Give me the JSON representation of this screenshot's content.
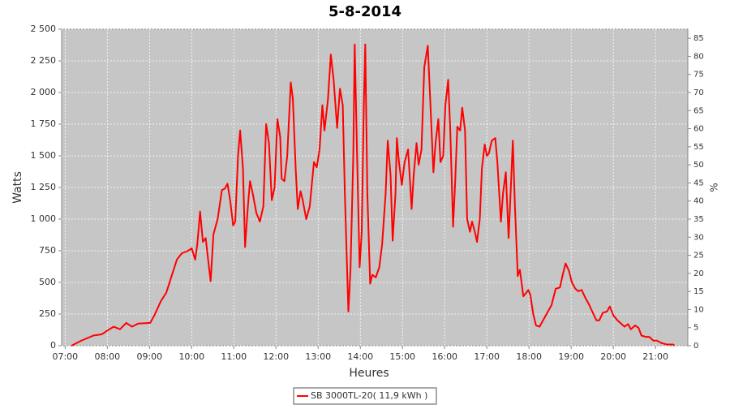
{
  "chart_data": {
    "type": "line",
    "title": "5-8-2014",
    "x_label": "Heures",
    "y_label": "Watts",
    "y2_label": "%",
    "x": [
      "07:09",
      "07:23",
      "07:40",
      "07:52",
      "08:03",
      "08:09",
      "08:18",
      "08:27",
      "08:35",
      "08:44",
      "09:01",
      "09:07",
      "09:16",
      "09:24",
      "09:32",
      "09:39",
      "09:46",
      "09:55",
      "10:00",
      "10:05",
      "10:08",
      "10:12",
      "10:16",
      "10:20",
      "10:23",
      "10:27",
      "10:31",
      "10:37",
      "10:43",
      "10:47",
      "10:51",
      "10:55",
      "10:59",
      "11:02",
      "11:06",
      "11:09",
      "11:13",
      "11:16",
      "11:20",
      "11:23",
      "11:27",
      "11:32",
      "11:37",
      "11:42",
      "11:46",
      "11:50",
      "11:54",
      "11:58",
      "12:02",
      "12:06",
      "12:08",
      "12:12",
      "12:16",
      "12:21",
      "12:24",
      "12:28",
      "12:31",
      "12:35",
      "12:38",
      "12:43",
      "12:48",
      "12:54",
      "12:58",
      "13:02",
      "13:06",
      "13:09",
      "13:14",
      "13:18",
      "13:22",
      "13:27",
      "13:31",
      "13:35",
      "13:38",
      "13:43",
      "13:46",
      "13:50",
      "13:52",
      "13:55",
      "13:59",
      "14:02",
      "14:05",
      "14:07",
      "14:10",
      "14:14",
      "14:17",
      "14:22",
      "14:27",
      "14:31",
      "14:36",
      "14:39",
      "14:43",
      "14:46",
      "14:50",
      "14:52",
      "14:55",
      "14:59",
      "15:03",
      "15:08",
      "15:13",
      "15:16",
      "15:20",
      "15:23",
      "15:27",
      "15:31",
      "15:36",
      "15:39",
      "15:44",
      "15:47",
      "15:51",
      "15:54",
      "15:58",
      "16:01",
      "16:05",
      "16:08",
      "16:12",
      "16:15",
      "16:18",
      "16:22",
      "16:25",
      "16:29",
      "16:32",
      "16:36",
      "16:39",
      "16:43",
      "16:46",
      "16:50",
      "16:53",
      "16:57",
      "17:00",
      "17:03",
      "17:07",
      "17:12",
      "17:15",
      "17:20",
      "17:23",
      "17:27",
      "17:31",
      "17:33",
      "17:37",
      "17:40",
      "17:44",
      "17:47",
      "17:52",
      "17:55",
      "17:59",
      "18:02",
      "18:06",
      "18:10",
      "18:15",
      "18:21",
      "18:27",
      "18:32",
      "18:38",
      "18:44",
      "18:48",
      "18:52",
      "18:57",
      "19:01",
      "19:06",
      "19:10",
      "19:15",
      "19:20",
      "19:25",
      "19:30",
      "19:36",
      "19:40",
      "19:45",
      "19:51",
      "19:55",
      "20:00",
      "20:06",
      "20:12",
      "20:16",
      "20:21",
      "20:25",
      "20:31",
      "20:36",
      "20:40",
      "20:46",
      "20:51",
      "20:57",
      "21:02",
      "21:09",
      "21:16",
      "21:25",
      "21:27"
    ],
    "series": [
      {
        "name": "SB 3000TL-20( 11,9 kWh )",
        "color": "#ff0000",
        "values": [
          0,
          40,
          80,
          90,
          130,
          150,
          130,
          180,
          150,
          175,
          180,
          240,
          350,
          420,
          560,
          680,
          730,
          750,
          770,
          680,
          800,
          1060,
          820,
          850,
          700,
          510,
          880,
          1000,
          1230,
          1240,
          1280,
          1140,
          950,
          980,
          1500,
          1700,
          1400,
          780,
          1100,
          1300,
          1200,
          1050,
          980,
          1100,
          1750,
          1600,
          1150,
          1250,
          1790,
          1650,
          1320,
          1300,
          1500,
          2080,
          1950,
          1400,
          1080,
          1220,
          1150,
          1000,
          1100,
          1450,
          1410,
          1550,
          1900,
          1700,
          1950,
          2300,
          2100,
          1720,
          2030,
          1900,
          1200,
          270,
          600,
          1500,
          2380,
          1600,
          620,
          900,
          1900,
          2380,
          1200,
          490,
          560,
          540,
          620,
          800,
          1200,
          1620,
          1350,
          830,
          1200,
          1640,
          1450,
          1270,
          1450,
          1550,
          1080,
          1350,
          1600,
          1430,
          1550,
          2200,
          2370,
          2000,
          1370,
          1600,
          1790,
          1450,
          1500,
          1900,
          2100,
          1700,
          940,
          1300,
          1730,
          1700,
          1880,
          1700,
          1000,
          900,
          980,
          900,
          820,
          1000,
          1400,
          1590,
          1500,
          1520,
          1620,
          1640,
          1450,
          980,
          1200,
          1370,
          850,
          1100,
          1620,
          1100,
          550,
          600,
          390,
          410,
          440,
          400,
          250,
          160,
          150,
          210,
          270,
          320,
          450,
          460,
          560,
          650,
          590,
          500,
          450,
          430,
          440,
          380,
          330,
          270,
          200,
          200,
          260,
          270,
          310,
          240,
          200,
          170,
          150,
          170,
          130,
          160,
          140,
          80,
          70,
          70,
          40,
          40,
          20,
          10,
          10,
          0
        ]
      }
    ],
    "xlim": [
      "06:55",
      "21:46"
    ],
    "xticks": [
      "07:00",
      "08:00",
      "09:00",
      "10:00",
      "11:00",
      "12:00",
      "13:00",
      "14:00",
      "15:00",
      "16:00",
      "17:00",
      "18:00",
      "19:00",
      "20:00",
      "21:00"
    ],
    "ylim": [
      0,
      2500
    ],
    "yticks": [
      0,
      250,
      500,
      750,
      {
        "value": 1000,
        "label": "1 000"
      },
      {
        "value": 1250,
        "label": "1 250"
      },
      {
        "value": 1500,
        "label": "1 500"
      },
      {
        "value": 1750,
        "label": "1 750"
      },
      {
        "value": 2000,
        "label": "2 000"
      },
      {
        "value": 2250,
        "label": "2 250"
      },
      {
        "value": 2500,
        "label": "2 500"
      }
    ],
    "y2lim": [
      0,
      87.5
    ],
    "y2ticks": [
      0,
      5,
      10,
      15,
      20,
      25,
      30,
      35,
      40,
      45,
      50,
      55,
      60,
      65,
      70,
      75,
      80,
      85
    ],
    "grid": true,
    "legend": "bottom"
  }
}
